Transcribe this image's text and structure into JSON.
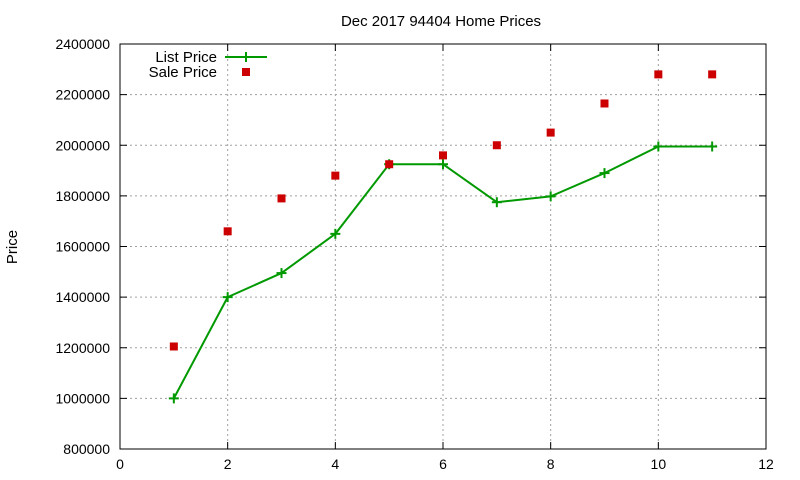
{
  "chart_data": {
    "type": "line",
    "title": "Dec 2017 94404 Home Prices",
    "xlabel": "",
    "ylabel": "Price",
    "xlim": [
      0,
      12
    ],
    "ylim": [
      800000,
      2400000
    ],
    "x_ticks": [
      "0",
      "2",
      "4",
      "6",
      "8",
      "10",
      "12"
    ],
    "y_ticks": [
      "800000",
      "1000000",
      "1200000",
      "1400000",
      "1600000",
      "1800000",
      "2000000",
      "2200000",
      "2400000"
    ],
    "grid": true,
    "legend_position": "top-left",
    "series": [
      {
        "name": "List Price",
        "style": "line-with-plus-markers",
        "color": "#009900",
        "x": [
          1,
          2,
          3,
          4,
          5,
          6,
          7,
          8,
          9,
          10,
          11
        ],
        "values": [
          1000000,
          1400000,
          1495000,
          1650000,
          1925000,
          1925000,
          1775000,
          1798000,
          1890000,
          1995000,
          1995000
        ]
      },
      {
        "name": "Sale Price",
        "style": "square-markers",
        "color": "#cc0000",
        "x": [
          1,
          2,
          3,
          4,
          5,
          6,
          7,
          8,
          9,
          10,
          11
        ],
        "values": [
          1205000,
          1660000,
          1790000,
          1880000,
          1925000,
          1960000,
          2000000,
          2050000,
          2165000,
          2280000,
          2280000
        ]
      }
    ]
  }
}
